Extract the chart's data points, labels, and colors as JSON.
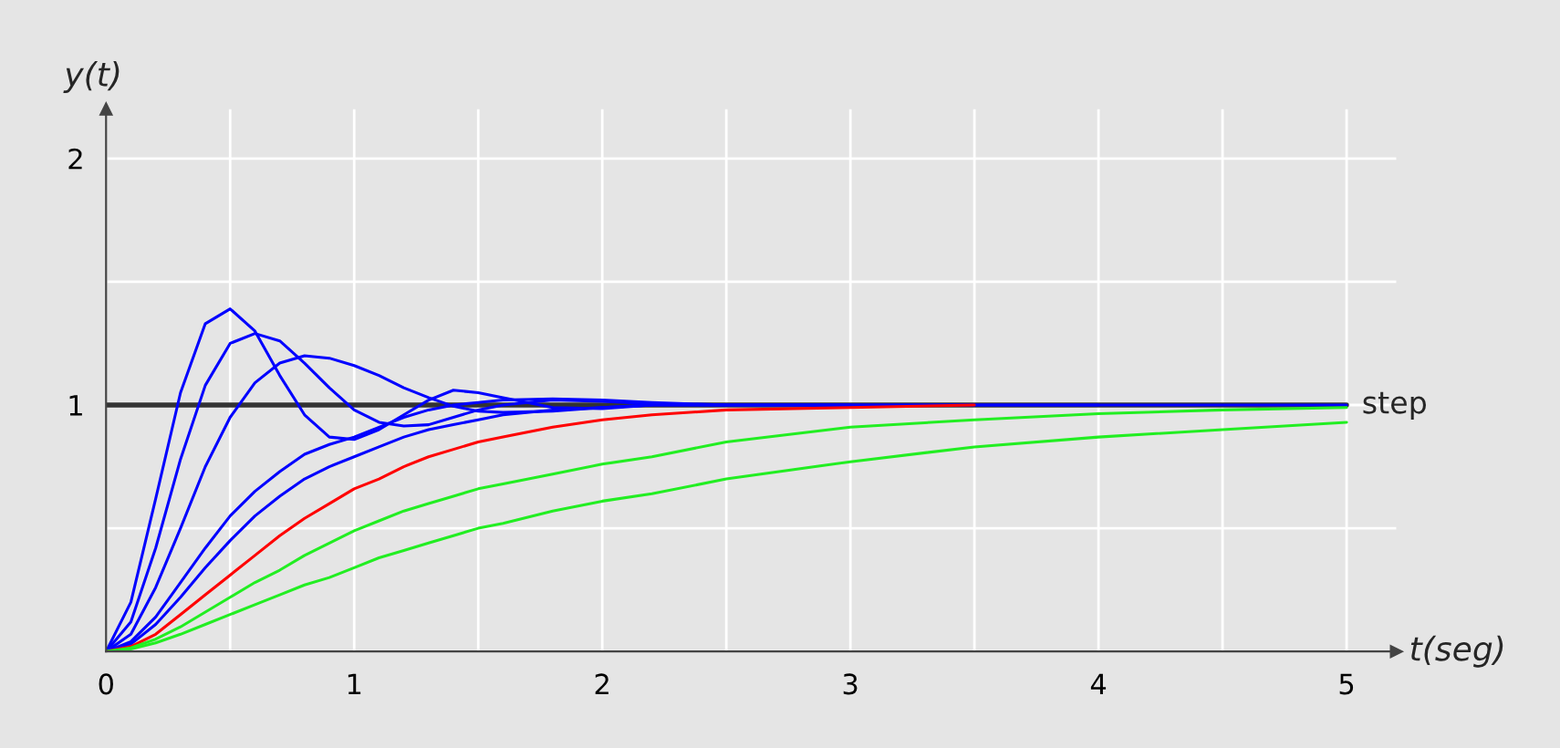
{
  "chart_data": {
    "type": "line",
    "xlabel": "t(seg)",
    "ylabel": "y(t)",
    "x": [
      0,
      0.1,
      0.2,
      0.3,
      0.4,
      0.5,
      0.6,
      0.7,
      0.8,
      0.9,
      1.0,
      1.1,
      1.2,
      1.3,
      1.4,
      1.5,
      1.6,
      1.8,
      2.0,
      2.2,
      2.5,
      3,
      3.5,
      4,
      4.5,
      5
    ],
    "series": [
      {
        "color": "#0000ff",
        "values": [
          0,
          0.2,
          0.62,
          1.05,
          1.33,
          1.39,
          1.3,
          1.12,
          0.96,
          0.87,
          0.86,
          0.9,
          0.96,
          1.02,
          1.06,
          1.05,
          1.03,
          0.99,
          0.985,
          1.0,
          null,
          null,
          null,
          null,
          null,
          null
        ]
      },
      {
        "color": "#0000ff",
        "values": [
          0,
          0.12,
          0.42,
          0.78,
          1.08,
          1.25,
          1.29,
          1.26,
          1.17,
          1.07,
          0.98,
          0.93,
          0.915,
          0.92,
          0.95,
          0.98,
          1.0,
          1.02,
          1.015,
          1.005,
          1.0,
          null,
          null,
          null,
          null,
          null
        ]
      },
      {
        "color": "#0000ff",
        "values": [
          0,
          0.07,
          0.26,
          0.5,
          0.75,
          0.95,
          1.09,
          1.17,
          1.2,
          1.19,
          1.16,
          1.12,
          1.07,
          1.03,
          0.995,
          0.975,
          0.97,
          0.975,
          0.99,
          1.0,
          1.0,
          1,
          null,
          null,
          null,
          null
        ]
      },
      {
        "color": "#0000ff",
        "values": [
          0,
          0.04,
          0.14,
          0.28,
          0.42,
          0.55,
          0.65,
          0.73,
          0.8,
          0.84,
          0.87,
          0.91,
          0.95,
          0.98,
          1.0,
          1.01,
          1.02,
          1.025,
          1.02,
          1.01,
          1.0,
          1,
          1,
          1,
          null,
          null
        ]
      },
      {
        "color": "#0000ff",
        "values": [
          0,
          0.03,
          0.11,
          0.22,
          0.34,
          0.45,
          0.55,
          0.63,
          0.7,
          0.75,
          0.79,
          0.83,
          0.87,
          0.9,
          0.92,
          0.94,
          0.96,
          0.98,
          0.99,
          1.0,
          1.0,
          1,
          1,
          1,
          1,
          1
        ]
      },
      {
        "color": "#ff0000",
        "values": [
          0,
          0.02,
          0.07,
          0.15,
          0.23,
          0.31,
          0.39,
          0.47,
          0.54,
          0.6,
          0.66,
          0.7,
          0.75,
          0.79,
          0.82,
          0.85,
          0.87,
          0.91,
          0.94,
          0.96,
          0.98,
          0.99,
          1,
          null,
          null,
          null
        ]
      },
      {
        "color": "#22ee22",
        "values": [
          0,
          0.015,
          0.05,
          0.1,
          0.16,
          0.22,
          0.28,
          0.33,
          0.39,
          0.44,
          0.49,
          0.53,
          0.57,
          0.6,
          0.63,
          0.66,
          0.68,
          0.72,
          0.76,
          0.79,
          0.85,
          0.91,
          0.94,
          0.965,
          0.98,
          0.99
        ]
      },
      {
        "color": "#22ee22",
        "values": [
          0,
          0.01,
          0.035,
          0.07,
          0.11,
          0.15,
          0.19,
          0.23,
          0.27,
          0.3,
          0.34,
          0.38,
          0.41,
          0.44,
          0.47,
          0.5,
          0.52,
          0.57,
          0.61,
          0.64,
          0.7,
          0.77,
          0.83,
          0.87,
          0.9,
          0.93
        ]
      },
      {
        "name": "step",
        "color": "#333333",
        "x": [
          0,
          5
        ],
        "values": [
          1,
          1
        ]
      }
    ],
    "xlim": [
      0,
      5.2
    ],
    "ylim": [
      0,
      2.2
    ],
    "xticks": [
      0,
      {
        "value": 0.5,
        "label": null
      },
      1,
      {
        "value": 1.5,
        "label": null
      },
      2,
      {
        "value": 2.5,
        "label": null
      },
      3,
      {
        "value": 3.5,
        "label": null
      },
      4,
      {
        "value": 4.5,
        "label": null
      },
      5
    ],
    "yticks": [
      {
        "value": 0.5,
        "label": null
      },
      1,
      {
        "value": 1.5,
        "label": null
      },
      2
    ],
    "grid": true,
    "legend": false,
    "line_style": "solid",
    "marker": "none"
  }
}
